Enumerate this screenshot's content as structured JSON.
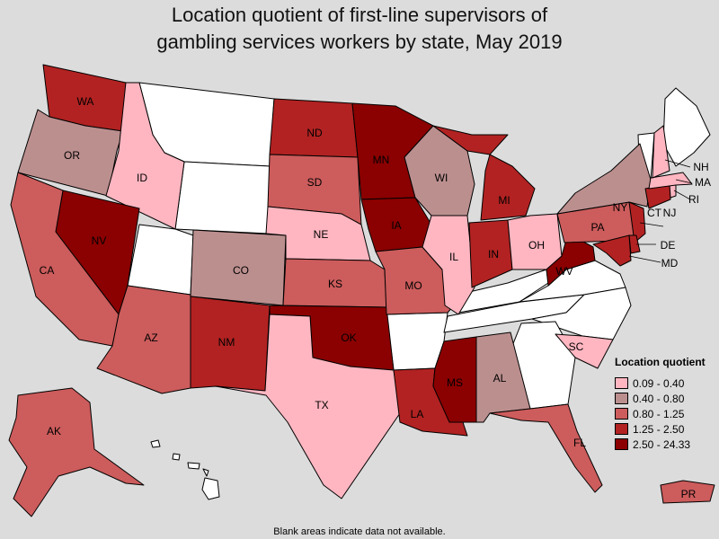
{
  "title_line1": "Location quotient of first-line supervisors of",
  "title_line2": "gambling services workers by state, May 2019",
  "legend": {
    "title": "Location quotient",
    "items": [
      {
        "label": "0.09 - 0.40",
        "color": "#ffb6c1"
      },
      {
        "label": "0.40 - 0.80",
        "color": "#bc8f8f"
      },
      {
        "label": "0.80 - 1.25",
        "color": "#cd5c5c"
      },
      {
        "label": "1.25 - 2.50",
        "color": "#b22222"
      },
      {
        "label": "2.50 - 24.33",
        "color": "#8b0000"
      }
    ]
  },
  "note": "Blank areas indicate data not available.",
  "states": {
    "WA": "1.25 - 2.50",
    "OR": "0.40 - 0.80",
    "CA": "0.80 - 1.25",
    "NV": "2.50 - 24.33",
    "ID": "0.09 - 0.40",
    "AZ": "0.80 - 1.25",
    "CO": "0.40 - 0.80",
    "NM": "1.25 - 2.50",
    "ND": "1.25 - 2.50",
    "SD": "0.80 - 1.25",
    "NE": "0.09 - 0.40",
    "KS": "0.80 - 1.25",
    "OK": "2.50 - 24.33",
    "TX": "0.09 - 0.40",
    "MN": "2.50 - 24.33",
    "IA": "2.50 - 24.33",
    "MO": "0.80 - 1.25",
    "WI": "0.40 - 0.80",
    "IL": "0.09 - 0.40",
    "MI": "1.25 - 2.50",
    "IN": "1.25 - 2.50",
    "OH": "0.09 - 0.40",
    "WV": "2.50 - 24.33",
    "PA": "0.80 - 1.25",
    "NY": "0.40 - 0.80",
    "LA": "1.25 - 2.50",
    "MS": "2.50 - 24.33",
    "AL": "0.40 - 0.80",
    "FL": "0.80 - 1.25",
    "SC": "0.09 - 0.40",
    "NJ": "1.25 - 2.50",
    "DE": "1.25 - 2.50",
    "MD": "1.25 - 2.50",
    "CT": "1.25 - 2.50",
    "NH": "0.09 - 0.40",
    "MA": "0.09 - 0.40",
    "RI": "0.09 - 0.40",
    "AK": "0.80 - 1.25",
    "PR": "0.80 - 1.25"
  },
  "labels": {
    "WA": "WA",
    "OR": "OR",
    "CA": "CA",
    "NV": "NV",
    "ID": "ID",
    "AZ": "AZ",
    "CO": "CO",
    "NM": "NM",
    "ND": "ND",
    "SD": "SD",
    "NE": "NE",
    "KS": "KS",
    "OK": "OK",
    "TX": "TX",
    "MN": "MN",
    "IA": "IA",
    "MO": "MO",
    "WI": "WI",
    "IL": "IL",
    "MI": "MI",
    "IN": "IN",
    "OH": "OH",
    "WV": "WV",
    "PA": "PA",
    "NY": "NY",
    "LA": "LA",
    "MS": "MS",
    "AL": "AL",
    "FL": "FL",
    "SC": "SC",
    "NJ": "NJ",
    "DE": "DE",
    "MD": "MD",
    "CT": "CT",
    "NH": "NH",
    "MA": "MA",
    "RI": "RI",
    "AK": "AK",
    "PR": "PR"
  }
}
